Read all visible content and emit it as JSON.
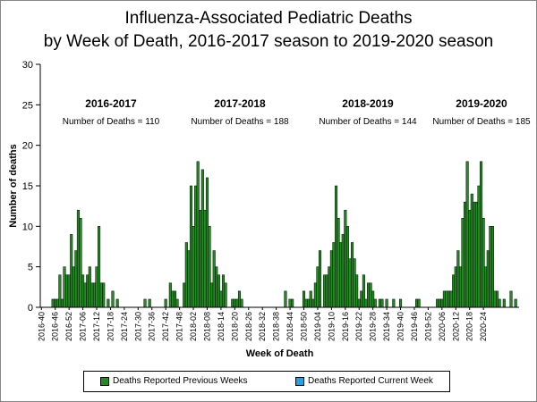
{
  "colors": {
    "previous": "#228B22",
    "current": "#1EA5E6"
  },
  "chart_data": {
    "type": "bar",
    "title": "Influenza-Associated Pediatric Deaths",
    "subtitle": "by Week of Death, 2016-2017 season to 2019-2020 season",
    "xlabel": "Week of Death",
    "ylabel": "Number of deaths",
    "ylim": [
      0,
      30
    ],
    "yticks": [
      0,
      5,
      10,
      15,
      20,
      25,
      30
    ],
    "grid": false,
    "legend_position": "bottom",
    "x_tick_labels": [
      "2016-40",
      "2016-46",
      "2016-52",
      "2017-06",
      "2017-12",
      "2017-18",
      "2017-24",
      "2017-30",
      "2017-36",
      "2017-42",
      "2017-48",
      "2018-02",
      "2018-08",
      "2018-14",
      "2018-20",
      "2018-26",
      "2018-32",
      "2018-38",
      "2018-44",
      "2018-50",
      "2019-04",
      "2019-10",
      "2019-16",
      "2019-22",
      "2019-28",
      "2019-34",
      "2019-40",
      "2019-46",
      "2019-52",
      "2020-06",
      "2020-12",
      "2020-18",
      "2020-24"
    ],
    "series": [
      {
        "name": "Deaths Reported Previous Weeks",
        "values": [
          0,
          0,
          0,
          0,
          0,
          1,
          1,
          1,
          4,
          1,
          5,
          4,
          4,
          9,
          5,
          7,
          12,
          11,
          4,
          3,
          4,
          5,
          3,
          3,
          5,
          10,
          3,
          3,
          0,
          1,
          0,
          2,
          0,
          1,
          0,
          0,
          0,
          0,
          0,
          0,
          0,
          0,
          0,
          0,
          0,
          1,
          0,
          1,
          0,
          0,
          0,
          0,
          0,
          0,
          1,
          0,
          3,
          2,
          2,
          1,
          0,
          0,
          3,
          8,
          7,
          15,
          10,
          15,
          18,
          12,
          17,
          12,
          16,
          10,
          3,
          7,
          5,
          4,
          2,
          4,
          3,
          0,
          0,
          1,
          1,
          1,
          2,
          1,
          0,
          0,
          0,
          0,
          0,
          0,
          0,
          0,
          0,
          0,
          0,
          0,
          0,
          0,
          0,
          0,
          0,
          0,
          2,
          0,
          1,
          1,
          0,
          0,
          0,
          0,
          2,
          1,
          1,
          2,
          1,
          3,
          5,
          7,
          0,
          4,
          4,
          5,
          7,
          8,
          15,
          11,
          8,
          9,
          12,
          10,
          6,
          8,
          6,
          4,
          1,
          2,
          4,
          1,
          3,
          3,
          2,
          1,
          0,
          1,
          1,
          0,
          1,
          0,
          0,
          1,
          0,
          0,
          1,
          0,
          0,
          0,
          0,
          0,
          0,
          1,
          1,
          0,
          0,
          0,
          0,
          0,
          0,
          0,
          1,
          1,
          1,
          2,
          2,
          2,
          2,
          4,
          5,
          7,
          5,
          11,
          13,
          18,
          12,
          14,
          13,
          13,
          15,
          18,
          11,
          5,
          7,
          10,
          10,
          2,
          2,
          1,
          0,
          1,
          0,
          0,
          2,
          0,
          1,
          0,
          0,
          0,
          0,
          0,
          0
        ],
        "total_weeks": 208
      },
      {
        "name": "Deaths Reported Current Week",
        "values": []
      }
    ],
    "seasons": [
      {
        "label": "2016-2017",
        "deaths_text": "Number of Deaths = 110"
      },
      {
        "label": "2017-2018",
        "deaths_text": "Number of Deaths = 188"
      },
      {
        "label": "2018-2019",
        "deaths_text": "Number of Deaths = 144"
      },
      {
        "label": "2019-2020",
        "deaths_text": "Number of Deaths = 185"
      }
    ]
  }
}
